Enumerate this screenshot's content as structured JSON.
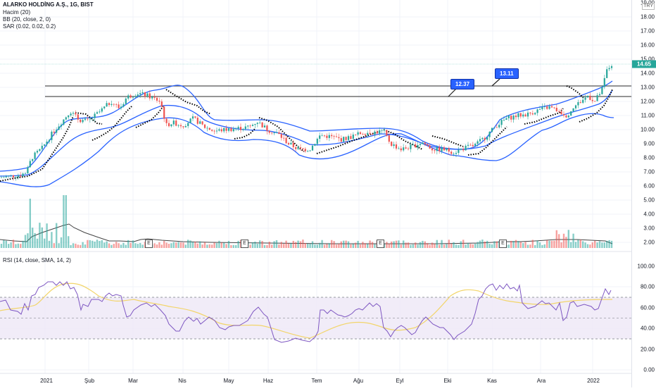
{
  "header": {
    "symbol_title": "ALARKO HOLDİNG A.Ş., 1G, BIST",
    "indicators": [
      "Hacim (20)",
      "BB (20, close, 2, 0)",
      "SAR (0.02, 0.02, 0.2)"
    ],
    "rsi_title": "RSI (14, close, SMA, 14, 2)"
  },
  "price_axis": {
    "currency": "TRY",
    "labels": [
      "19.00",
      "18.00",
      "17.00",
      "16.00",
      "15.00",
      "14.00",
      "13.00",
      "12.00",
      "11.00",
      "10.00",
      "9.00",
      "8.00",
      "7.00",
      "6.00",
      "5.00",
      "4.00",
      "3.00",
      "2.00"
    ],
    "last_price": "14.65",
    "last_price_color": "#26a69a"
  },
  "rsi_axis": {
    "labels": [
      "100.00",
      "80.00",
      "60.00",
      "40.00",
      "20.00",
      "0.00"
    ]
  },
  "time_axis": {
    "labels": [
      "2021",
      "Şub",
      "Mar",
      "Nis",
      "May",
      "Haz",
      "Tem",
      "Ağu",
      "Eyl",
      "Eki",
      "Kas",
      "Ara",
      "2022"
    ]
  },
  "annotations": {
    "callouts": [
      "12.37",
      "13.11"
    ],
    "earnings_marker": "E"
  },
  "colors": {
    "up": "#26a69a",
    "down": "#ef5350",
    "bollinger": "#2962ff",
    "sar": "#000000",
    "rsi": "#7e57c2",
    "rsi_ma": "#f5d76e",
    "rsi_band": "#ede7f6",
    "horizontal_lines": "#555555",
    "callout_bg": "#2962ff"
  },
  "chart_data": [
    {
      "type": "candlestick",
      "title": "ALARKO HOLDİNG A.Ş., 1G, BIST",
      "ylabel": "TRY",
      "ylim": [
        2,
        19
      ],
      "x": [
        "2020-12",
        "2021-01",
        "2021-02",
        "2021-03",
        "2021-04",
        "2021-05",
        "2021-06",
        "2021-07",
        "2021-08",
        "2021-09",
        "2021-10",
        "2021-11",
        "2021-12",
        "2022-01"
      ],
      "close_approx": [
        6.7,
        8.5,
        11.0,
        12.2,
        10.1,
        10.0,
        10.4,
        8.6,
        9.8,
        8.8,
        8.4,
        10.9,
        11.5,
        14.65
      ],
      "last_close": 14.65,
      "horizontal_levels": [
        12.37,
        13.11
      ],
      "overlays": [
        "Bollinger Bands (20, close, 2, 0)",
        "Parabolic SAR (0.02, 0.02, 0.2)"
      ]
    },
    {
      "type": "bar",
      "title": "Hacim (20)",
      "note": "volume histogram with 20-period MA; spikes in Jan 2021 and Dec 2021",
      "earnings_markers_x": [
        "Mar 2021",
        "Haz 2021",
        "Eyl 2021",
        "Kas 2021"
      ]
    },
    {
      "type": "line",
      "title": "RSI (14, close, SMA, 14, 2)",
      "ylim": [
        0,
        100
      ],
      "bands": {
        "upper": 70,
        "middle": 50,
        "lower": 30
      },
      "x": [
        "2020-12",
        "2021-01",
        "2021-02",
        "2021-03",
        "2021-04",
        "2021-05",
        "2021-06",
        "2021-07",
        "2021-08",
        "2021-09",
        "2021-10",
        "2021-11",
        "2021-12",
        "2022-01"
      ],
      "series": [
        {
          "name": "RSI",
          "values": [
            65,
            60,
            83,
            85,
            45,
            55,
            70,
            30,
            65,
            35,
            40,
            82,
            60,
            77
          ]
        },
        {
          "name": "RSI SMA",
          "values": [
            56,
            58,
            72,
            82,
            67,
            56,
            60,
            48,
            52,
            47,
            39,
            72,
            66,
            68
          ]
        }
      ]
    }
  ]
}
